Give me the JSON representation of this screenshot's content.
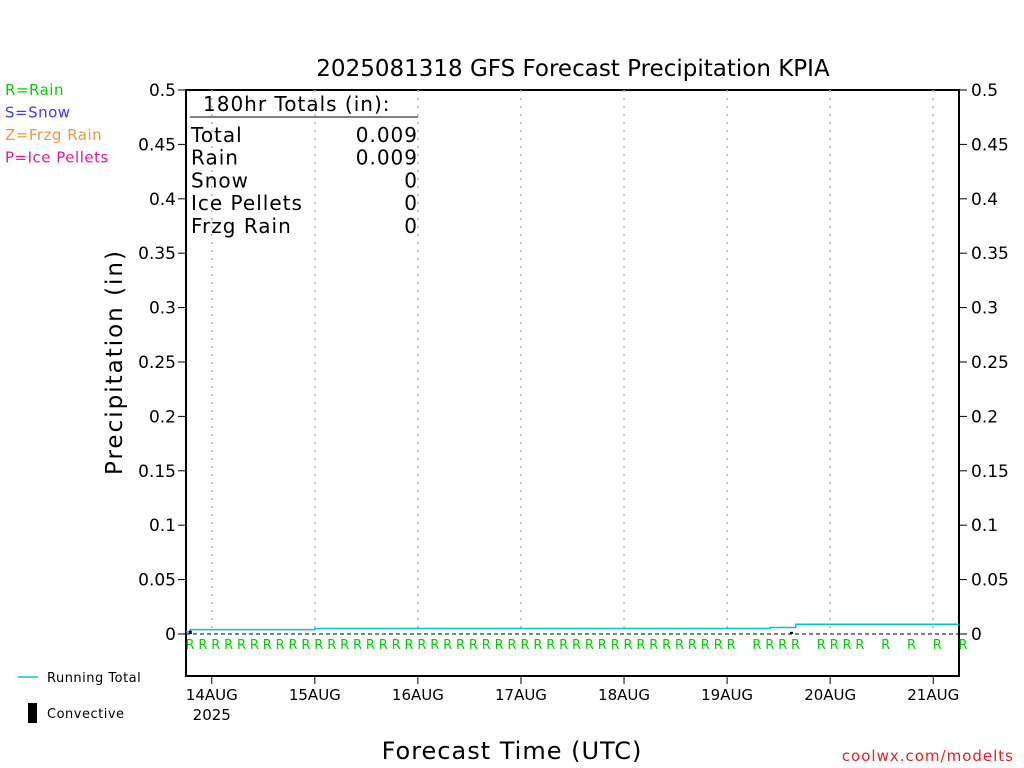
{
  "chart_data": {
    "type": "line",
    "title": "2025081318 GFS Forecast Precipitation KPIA",
    "xlabel": "Forecast Time (UTC)",
    "ylabel": "Precipitation (in)",
    "ylim": [
      0,
      0.5
    ],
    "yticks": [
      "0",
      "0.05",
      "0.1",
      "0.15",
      "0.2",
      "0.25",
      "0.3",
      "0.35",
      "0.4",
      "0.45",
      "0.5"
    ],
    "x_unit": "forecast hour",
    "xlim": [
      0,
      180
    ],
    "xticks": [
      {
        "hour": 6,
        "label": "14AUG",
        "sublabel": "2025"
      },
      {
        "hour": 30,
        "label": "15AUG",
        "sublabel": ""
      },
      {
        "hour": 54,
        "label": "16AUG",
        "sublabel": ""
      },
      {
        "hour": 78,
        "label": "17AUG",
        "sublabel": ""
      },
      {
        "hour": 102,
        "label": "18AUG",
        "sublabel": ""
      },
      {
        "hour": 126,
        "label": "19AUG",
        "sublabel": ""
      },
      {
        "hour": 150,
        "label": "20AUG",
        "sublabel": ""
      },
      {
        "hour": 174,
        "label": "21AUG",
        "sublabel": ""
      }
    ],
    "grid": "vertical-dotted",
    "series": [
      {
        "name": "Running Total",
        "color": "#00c8c8",
        "x": [
          0,
          1,
          30,
          135,
          136,
          141,
          142,
          180
        ],
        "values": [
          0.002,
          0.004,
          0.005,
          0.005,
          0.006,
          0.006,
          0.009,
          0.009
        ]
      }
    ],
    "convective": {
      "name": "Convective",
      "color": "#000000",
      "x": [
        1,
        141
      ],
      "values": [
        0.003,
        0.002
      ]
    },
    "ptype_markers": {
      "symbol": "R",
      "color": "#00d000",
      "hours": [
        0,
        3,
        6,
        9,
        12,
        15,
        18,
        21,
        24,
        27,
        30,
        33,
        36,
        39,
        42,
        45,
        48,
        51,
        54,
        57,
        60,
        63,
        66,
        69,
        72,
        75,
        78,
        81,
        84,
        87,
        90,
        93,
        96,
        99,
        102,
        105,
        108,
        111,
        114,
        117,
        120,
        123,
        126,
        132,
        135,
        138,
        141,
        147,
        150,
        153,
        156,
        162,
        168,
        174,
        180
      ]
    },
    "ptype_legend": [
      {
        "text": "R=Rain",
        "color": "#00d000"
      },
      {
        "text": "S=Snow",
        "color": "#3c3cff"
      },
      {
        "text": "Z=Frzg Rain",
        "color": "#f0963c"
      },
      {
        "text": "P=Ice Pellets",
        "color": "#e6189a"
      }
    ],
    "totals": {
      "heading": "180hr Totals (in):",
      "rows": [
        {
          "label": "Total",
          "value": "0.009"
        },
        {
          "label": "Rain",
          "value": "0.009"
        },
        {
          "label": "Snow",
          "value": "0"
        },
        {
          "label": "Ice Pellets",
          "value": "0"
        },
        {
          "label": "Frzg Rain",
          "value": "0"
        }
      ]
    },
    "legend": {
      "running_total_label": "Running Total",
      "convective_label": "Convective"
    },
    "credit": "coolwx.com/modelts"
  }
}
